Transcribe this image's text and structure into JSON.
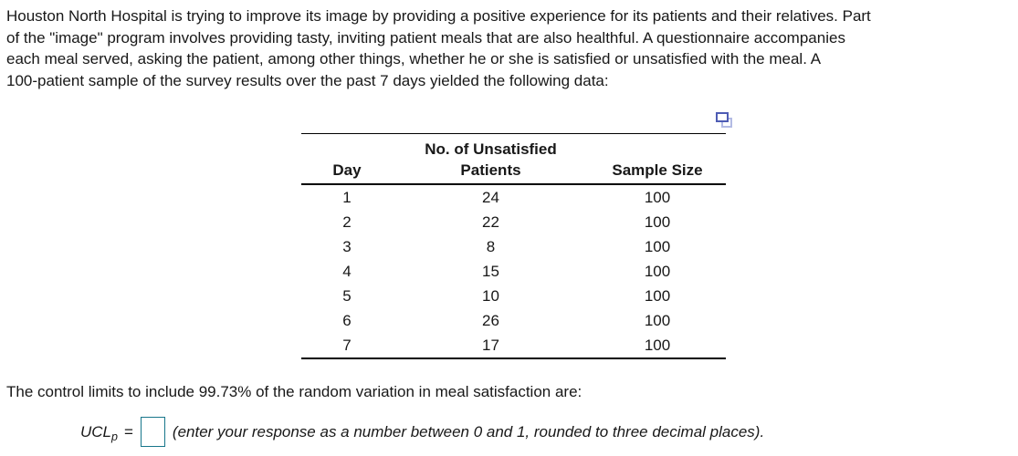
{
  "problem": {
    "lines": [
      "Houston North Hospital is trying to improve its image by providing a positive experience for its patients and their relatives. Part",
      "of the \"image\" program involves providing tasty, inviting patient meals that are also healthful. A questionnaire accompanies",
      "each meal served, asking the patient, among other things, whether he or she is satisfied or unsatisfied with the meal. A",
      "100-patient sample of the survey results over the past 7 days yielded the following data:"
    ]
  },
  "table": {
    "header": {
      "col1": "Day",
      "col2_line1": "No. of Unsatisfied",
      "col2_line2": "Patients",
      "col3": "Sample Size"
    },
    "rows": [
      {
        "day": "1",
        "unsatisfied": "24",
        "sample": "100"
      },
      {
        "day": "2",
        "unsatisfied": "22",
        "sample": "100"
      },
      {
        "day": "3",
        "unsatisfied": "8",
        "sample": "100"
      },
      {
        "day": "4",
        "unsatisfied": "15",
        "sample": "100"
      },
      {
        "day": "5",
        "unsatisfied": "10",
        "sample": "100"
      },
      {
        "day": "6",
        "unsatisfied": "26",
        "sample": "100"
      },
      {
        "day": "7",
        "unsatisfied": "17",
        "sample": "100"
      }
    ]
  },
  "icons": {
    "copy_icon": "copy-table-icon"
  },
  "colors": {
    "copy_icon_front": "#4e5cb4",
    "copy_icon_back": "#b3bbe4",
    "answer_box_border": "#17768b",
    "text": "#181818"
  },
  "control_statement": "The control limits to include 99.73% of the random variation in meal satisfaction are:",
  "answer": {
    "label_main": "UCL",
    "label_sub": "p",
    "equals": "=",
    "value": "",
    "note": "(enter your response as a number between 0 and 1, rounded to three decimal places)."
  }
}
